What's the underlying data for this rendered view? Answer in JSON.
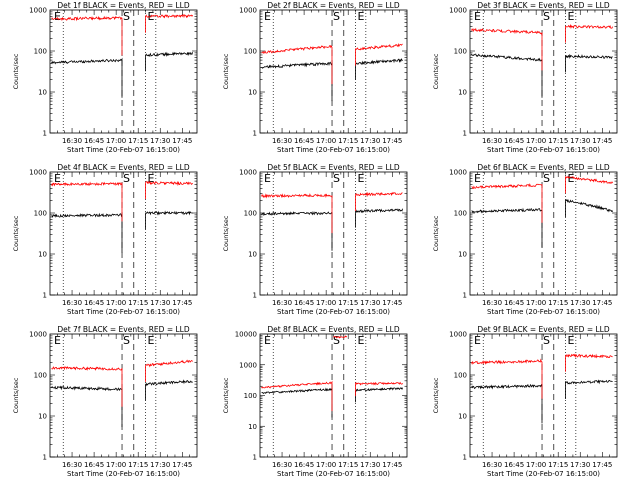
{
  "chart_data": [
    {
      "type": "line",
      "title": "Det 1f BLACK = Events, RED = LLD",
      "xlabel": "Start Time (20-Feb-07 16:15:00)",
      "ylabel": "Counts/sec",
      "y_scale": "log",
      "ylim": [
        1,
        1000
      ],
      "x_ticks": [
        "16:30",
        "16:45",
        "17:00",
        "17:15",
        "17:30",
        "17:45"
      ],
      "y_ticks": [
        "1",
        "10",
        "100",
        "1000"
      ],
      "markers": [
        "E",
        "S",
        "E"
      ],
      "series": [
        {
          "color": "#000000",
          "segments": [
            {
              "t0": "16:16",
              "t1": "17:04",
              "v0": 52,
              "v1": 60
            },
            {
              "t0": "17:20",
              "t1": "17:52",
              "v0": 80,
              "v1": 88
            }
          ]
        },
        {
          "color": "#ff0000",
          "segments": [
            {
              "t0": "16:16",
              "t1": "17:04",
              "v0": 600,
              "v1": 650
            },
            {
              "t0": "17:20",
              "t1": "17:52",
              "v0": 700,
              "v1": 720
            }
          ]
        }
      ]
    },
    {
      "type": "line",
      "title": "Det 2f BLACK = Events, RED = LLD",
      "xlabel": "Start Time (20-Feb-07 16:15:00)",
      "ylabel": "Counts/sec",
      "y_scale": "log",
      "ylim": [
        1,
        1000
      ],
      "x_ticks": [
        "16:30",
        "16:45",
        "17:00",
        "17:15",
        "17:30",
        "17:45"
      ],
      "y_ticks": [
        "1",
        "10",
        "100",
        "1000"
      ],
      "markers": [
        "E",
        "S",
        "E"
      ],
      "series": [
        {
          "color": "#000000",
          "segments": [
            {
              "t0": "16:16",
              "t1": "17:04",
              "v0": 40,
              "v1": 50
            },
            {
              "t0": "17:20",
              "t1": "17:52",
              "v0": 50,
              "v1": 60
            }
          ]
        },
        {
          "color": "#ff0000",
          "segments": [
            {
              "t0": "16:16",
              "t1": "17:04",
              "v0": 90,
              "v1": 130
            },
            {
              "t0": "17:20",
              "t1": "17:52",
              "v0": 110,
              "v1": 140
            }
          ]
        }
      ]
    },
    {
      "type": "line",
      "title": "Det 3f BLACK = Events, RED = LLD",
      "xlabel": "Start Time (20-Feb-07 16:15:00)",
      "ylabel": "Counts/sec",
      "y_scale": "log",
      "ylim": [
        1,
        1000
      ],
      "x_ticks": [
        "16:30",
        "16:45",
        "17:00",
        "17:15",
        "17:30",
        "17:45"
      ],
      "y_ticks": [
        "1",
        "10",
        "100",
        "1000"
      ],
      "markers": [
        "E",
        "S",
        "E"
      ],
      "series": [
        {
          "color": "#000000",
          "segments": [
            {
              "t0": "16:16",
              "t1": "17:04",
              "v0": 80,
              "v1": 60
            },
            {
              "t0": "17:20",
              "t1": "17:52",
              "v0": 75,
              "v1": 70
            }
          ]
        },
        {
          "color": "#ff0000",
          "segments": [
            {
              "t0": "16:16",
              "t1": "17:04",
              "v0": 330,
              "v1": 280
            },
            {
              "t0": "17:20",
              "t1": "17:52",
              "v0": 400,
              "v1": 380
            }
          ]
        }
      ]
    },
    {
      "type": "line",
      "title": "Det 4f BLACK = Events, RED = LLD",
      "xlabel": "Start Time (20-Feb-07 16:15:00)",
      "ylabel": "Counts/sec",
      "y_scale": "log",
      "ylim": [
        1,
        1000
      ],
      "x_ticks": [
        "16:30",
        "16:45",
        "17:00",
        "17:15",
        "17:30",
        "17:45"
      ],
      "y_ticks": [
        "1",
        "10",
        "100",
        "1000"
      ],
      "markers": [
        "E",
        "S",
        "E"
      ],
      "series": [
        {
          "color": "#000000",
          "segments": [
            {
              "t0": "16:16",
              "t1": "17:04",
              "v0": 85,
              "v1": 90
            },
            {
              "t0": "17:20",
              "t1": "17:52",
              "v0": 100,
              "v1": 100
            }
          ]
        },
        {
          "color": "#ff0000",
          "segments": [
            {
              "t0": "16:16",
              "t1": "17:04",
              "v0": 500,
              "v1": 520
            },
            {
              "t0": "17:20",
              "t1": "17:52",
              "v0": 550,
              "v1": 520
            }
          ]
        }
      ]
    },
    {
      "type": "line",
      "title": "Det 5f BLACK = Events, RED = LLD",
      "xlabel": "Start Time (20-Feb-07 16:15:00)",
      "ylabel": "Counts/sec",
      "y_scale": "log",
      "ylim": [
        1,
        1000
      ],
      "x_ticks": [
        "16:30",
        "16:45",
        "17:00",
        "17:15",
        "17:30",
        "17:45"
      ],
      "y_ticks": [
        "1",
        "10",
        "100",
        "1000"
      ],
      "markers": [
        "E",
        "S",
        "E"
      ],
      "series": [
        {
          "color": "#000000",
          "segments": [
            {
              "t0": "16:16",
              "t1": "17:04",
              "v0": 95,
              "v1": 100
            },
            {
              "t0": "17:20",
              "t1": "17:52",
              "v0": 110,
              "v1": 120
            }
          ]
        },
        {
          "color": "#ff0000",
          "segments": [
            {
              "t0": "16:16",
              "t1": "17:04",
              "v0": 260,
              "v1": 270
            },
            {
              "t0": "17:20",
              "t1": "17:52",
              "v0": 280,
              "v1": 300
            }
          ]
        }
      ]
    },
    {
      "type": "line",
      "title": "Det 6f BLACK = Events, RED = LLD",
      "xlabel": "Start Time (20-Feb-07 16:15:00)",
      "ylabel": "Counts/sec",
      "y_scale": "log",
      "ylim": [
        1,
        1000
      ],
      "x_ticks": [
        "16:30",
        "16:45",
        "17:00",
        "17:15",
        "17:30",
        "17:45"
      ],
      "y_ticks": [
        "1",
        "10",
        "100",
        "1000"
      ],
      "markers": [
        "E",
        "S",
        "E"
      ],
      "series": [
        {
          "color": "#000000",
          "segments": [
            {
              "t0": "16:16",
              "t1": "17:04",
              "v0": 110,
              "v1": 120
            },
            {
              "t0": "17:20",
              "t1": "17:52",
              "v0": 200,
              "v1": 110
            }
          ]
        },
        {
          "color": "#ff0000",
          "segments": [
            {
              "t0": "16:16",
              "t1": "17:04",
              "v0": 420,
              "v1": 480
            },
            {
              "t0": "17:20",
              "t1": "17:52",
              "v0": 750,
              "v1": 550
            }
          ]
        }
      ]
    },
    {
      "type": "line",
      "title": "Det 7f BLACK = Events, RED = LLD",
      "xlabel": "Start Time (20-Feb-07 16:15:00)",
      "ylabel": "Counts/sec",
      "y_scale": "log",
      "ylim": [
        1,
        1000
      ],
      "x_ticks": [
        "16:30",
        "16:45",
        "17:00",
        "17:15",
        "17:30",
        "17:45"
      ],
      "y_ticks": [
        "1",
        "10",
        "100",
        "1000"
      ],
      "markers": [
        "E",
        "S",
        "E"
      ],
      "series": [
        {
          "color": "#000000",
          "segments": [
            {
              "t0": "16:16",
              "t1": "17:04",
              "v0": 50,
              "v1": 45
            },
            {
              "t0": "17:20",
              "t1": "17:52",
              "v0": 60,
              "v1": 70
            }
          ]
        },
        {
          "color": "#ff0000",
          "segments": [
            {
              "t0": "16:16",
              "t1": "17:04",
              "v0": 150,
              "v1": 140
            },
            {
              "t0": "17:20",
              "t1": "17:52",
              "v0": 170,
              "v1": 220
            }
          ]
        }
      ]
    },
    {
      "type": "line",
      "title": "Det 8f BLACK = Events, RED = LLD",
      "xlabel": "Start Time (20-Feb-07 16:15:00)",
      "ylabel": "Counts/sec",
      "y_scale": "log",
      "ylim": [
        1,
        10000
      ],
      "x_ticks": [
        "16:30",
        "16:45",
        "17:00",
        "17:15",
        "17:30",
        "17:45"
      ],
      "y_ticks": [
        "1",
        "10",
        "100",
        "1000",
        "10000"
      ],
      "markers": [
        "E",
        "S",
        "E"
      ],
      "series": [
        {
          "color": "#000000",
          "segments": [
            {
              "t0": "16:16",
              "t1": "17:04",
              "v0": 120,
              "v1": 160
            },
            {
              "t0": "17:20",
              "t1": "17:52",
              "v0": 150,
              "v1": 170
            }
          ]
        },
        {
          "color": "#ff0000",
          "segments": [
            {
              "t0": "16:16",
              "t1": "17:04",
              "v0": 180,
              "v1": 260
            },
            {
              "t0": "17:05",
              "t1": "17:14",
              "v0": 8000,
              "v1": 8000
            },
            {
              "t0": "17:20",
              "t1": "17:52",
              "v0": 240,
              "v1": 250
            }
          ]
        }
      ]
    },
    {
      "type": "line",
      "title": "Det 9f BLACK = Events, RED = LLD",
      "xlabel": "Start Time (20-Feb-07 16:15:00)",
      "ylabel": "Counts/sec",
      "y_scale": "log",
      "ylim": [
        1,
        1000
      ],
      "x_ticks": [
        "16:30",
        "16:45",
        "17:00",
        "17:15",
        "17:30",
        "17:45"
      ],
      "y_ticks": [
        "1",
        "10",
        "100",
        "1000"
      ],
      "markers": [
        "E",
        "S",
        "E"
      ],
      "series": [
        {
          "color": "#000000",
          "segments": [
            {
              "t0": "16:16",
              "t1": "17:04",
              "v0": 50,
              "v1": 55
            },
            {
              "t0": "17:20",
              "t1": "17:52",
              "v0": 65,
              "v1": 70
            }
          ]
        },
        {
          "color": "#ff0000",
          "segments": [
            {
              "t0": "16:16",
              "t1": "17:04",
              "v0": 200,
              "v1": 220
            },
            {
              "t0": "17:20",
              "t1": "17:52",
              "v0": 300,
              "v1": 280
            }
          ]
        }
      ]
    }
  ]
}
